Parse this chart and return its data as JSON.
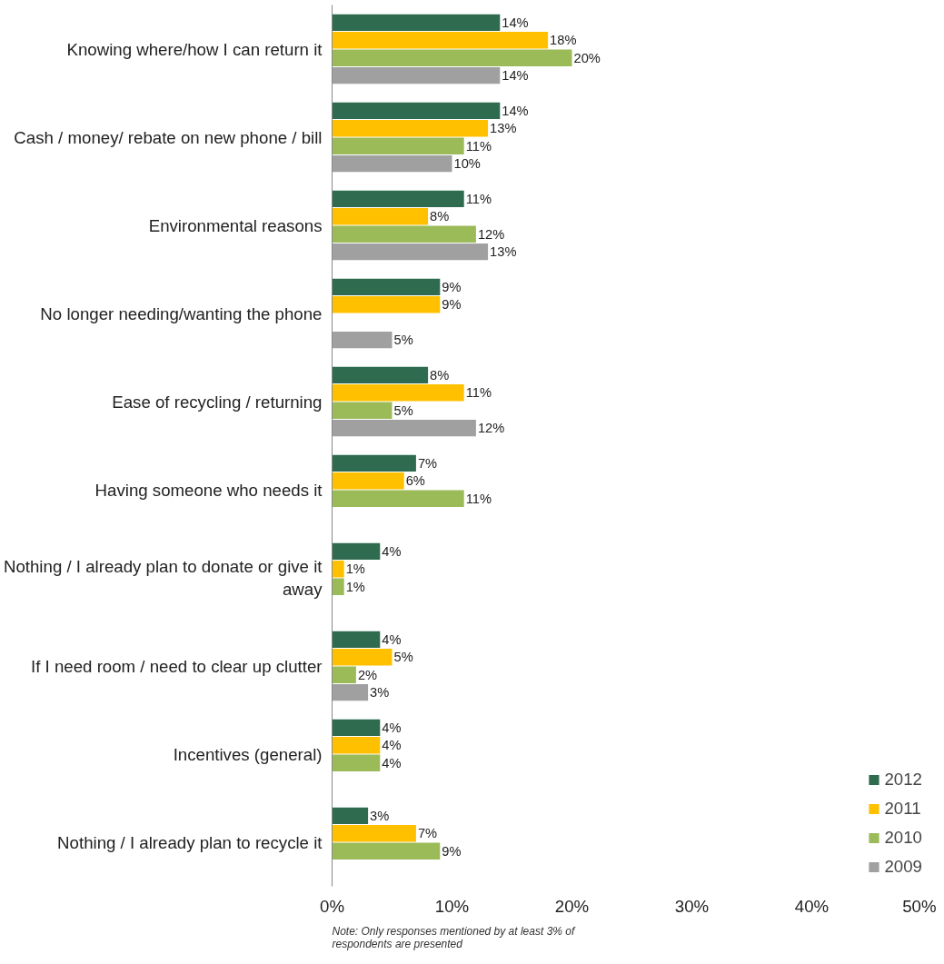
{
  "chart_data": {
    "type": "bar",
    "orientation": "horizontal",
    "categories": [
      "Knowing where/how I can return it",
      "Cash / money/ rebate on new phone / bill",
      "Environmental reasons",
      "No longer needing/wanting the phone",
      "Ease of recycling / returning",
      "Having someone who needs it",
      "Nothing / I already plan to donate or give it away",
      "If I need room / need to clear up clutter",
      "Incentives (general)",
      "Nothing / I already plan to recycle it"
    ],
    "series": [
      {
        "name": "2012",
        "color": "#2e6b4f",
        "values": [
          14,
          14,
          11,
          9,
          8,
          7,
          4,
          4,
          4,
          3
        ],
        "value_labels": [
          "14%",
          "14%",
          "11%",
          "9%",
          "8%",
          "7%",
          "4%",
          "4%",
          "4%",
          "3%"
        ]
      },
      {
        "name": "2011",
        "color": "#ffc000",
        "values": [
          18,
          13,
          8,
          9,
          11,
          6,
          1,
          5,
          4,
          7
        ],
        "value_labels": [
          "18%",
          "13%",
          "8%",
          "9%",
          "11%",
          "6%",
          "1%",
          "5%",
          "4%",
          "7%"
        ]
      },
      {
        "name": "2010",
        "color": "#9bbb59",
        "values": [
          20,
          11,
          12,
          null,
          5,
          11,
          1,
          2,
          4,
          9
        ],
        "value_labels": [
          "20%",
          "11%",
          "12%",
          null,
          "5%",
          "11%",
          "1%",
          "2%",
          "4%",
          "9%"
        ]
      },
      {
        "name": "2009",
        "color": "#a0a0a0",
        "values": [
          14,
          10,
          13,
          5,
          12,
          null,
          null,
          3,
          null,
          null
        ],
        "value_labels": [
          "14%",
          "10%",
          "13%",
          "5%",
          "12%",
          null,
          null,
          "3%",
          null,
          null
        ]
      }
    ],
    "xlim": [
      0,
      50
    ],
    "xticks": [
      {
        "value": 0,
        "label": "0%"
      },
      {
        "value": 10,
        "label": "10%"
      },
      {
        "value": 20,
        "label": "20%"
      },
      {
        "value": 30,
        "label": "30%"
      },
      {
        "value": 40,
        "label": "40%"
      },
      {
        "value": 50,
        "label": "50%"
      }
    ],
    "legend": "bottom right",
    "grid": false,
    "annotations": [
      "Note: Only responses mentioned by at least 3% of respondents are presented"
    ]
  }
}
